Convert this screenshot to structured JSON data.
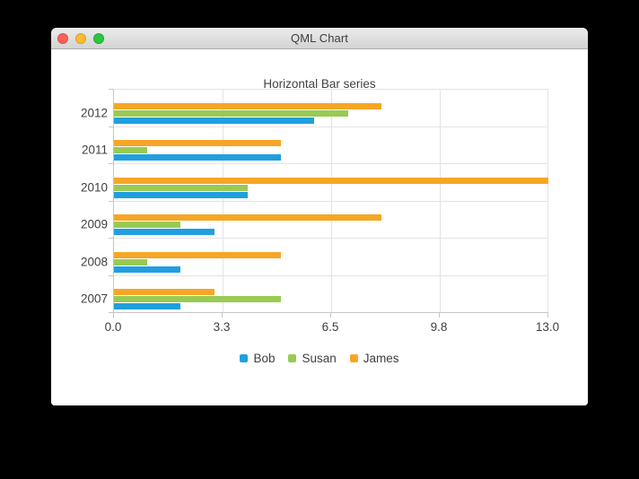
{
  "window": {
    "title": "QML Chart",
    "traffic_lights": [
      {
        "name": "close-button",
        "color": "#ff5f57"
      },
      {
        "name": "minimize-button",
        "color": "#febc2e"
      },
      {
        "name": "zoom-button",
        "color": "#28c840"
      }
    ],
    "titlebar_gradient_top": "#ececec",
    "titlebar_gradient_bottom": "#d3d3d3"
  },
  "chart_data": {
    "type": "bar",
    "orientation": "horizontal",
    "title": "Horizontal Bar series",
    "categories": [
      "2007",
      "2008",
      "2009",
      "2010",
      "2011",
      "2012"
    ],
    "categories_displayed_top_to_bottom": [
      "2012",
      "2011",
      "2010",
      "2009",
      "2008",
      "2007"
    ],
    "series": [
      {
        "name": "Bob",
        "color": "#209fdf",
        "values": [
          2,
          2,
          3,
          4,
          5,
          6
        ]
      },
      {
        "name": "Susan",
        "color": "#99ca53",
        "values": [
          5,
          1,
          2,
          4,
          1,
          7
        ]
      },
      {
        "name": "James",
        "color": "#f6a625",
        "values": [
          3,
          5,
          8,
          13,
          5,
          8
        ]
      }
    ],
    "bar_order_within_group_top_to_bottom": [
      "James",
      "Susan",
      "Bob"
    ],
    "xlabel": "",
    "ylabel": "",
    "xlim": [
      0,
      13
    ],
    "x_tick_values": [
      0,
      3.25,
      6.5,
      9.75,
      13
    ],
    "x_tick_labels": [
      "0.0",
      "3.3",
      "6.5",
      "9.8",
      "13.0"
    ],
    "grid": true,
    "grid_color": "#e4e4e4",
    "axis_color": "#c6c6c6",
    "text_color": "#404040",
    "legend_position": "bottom"
  }
}
